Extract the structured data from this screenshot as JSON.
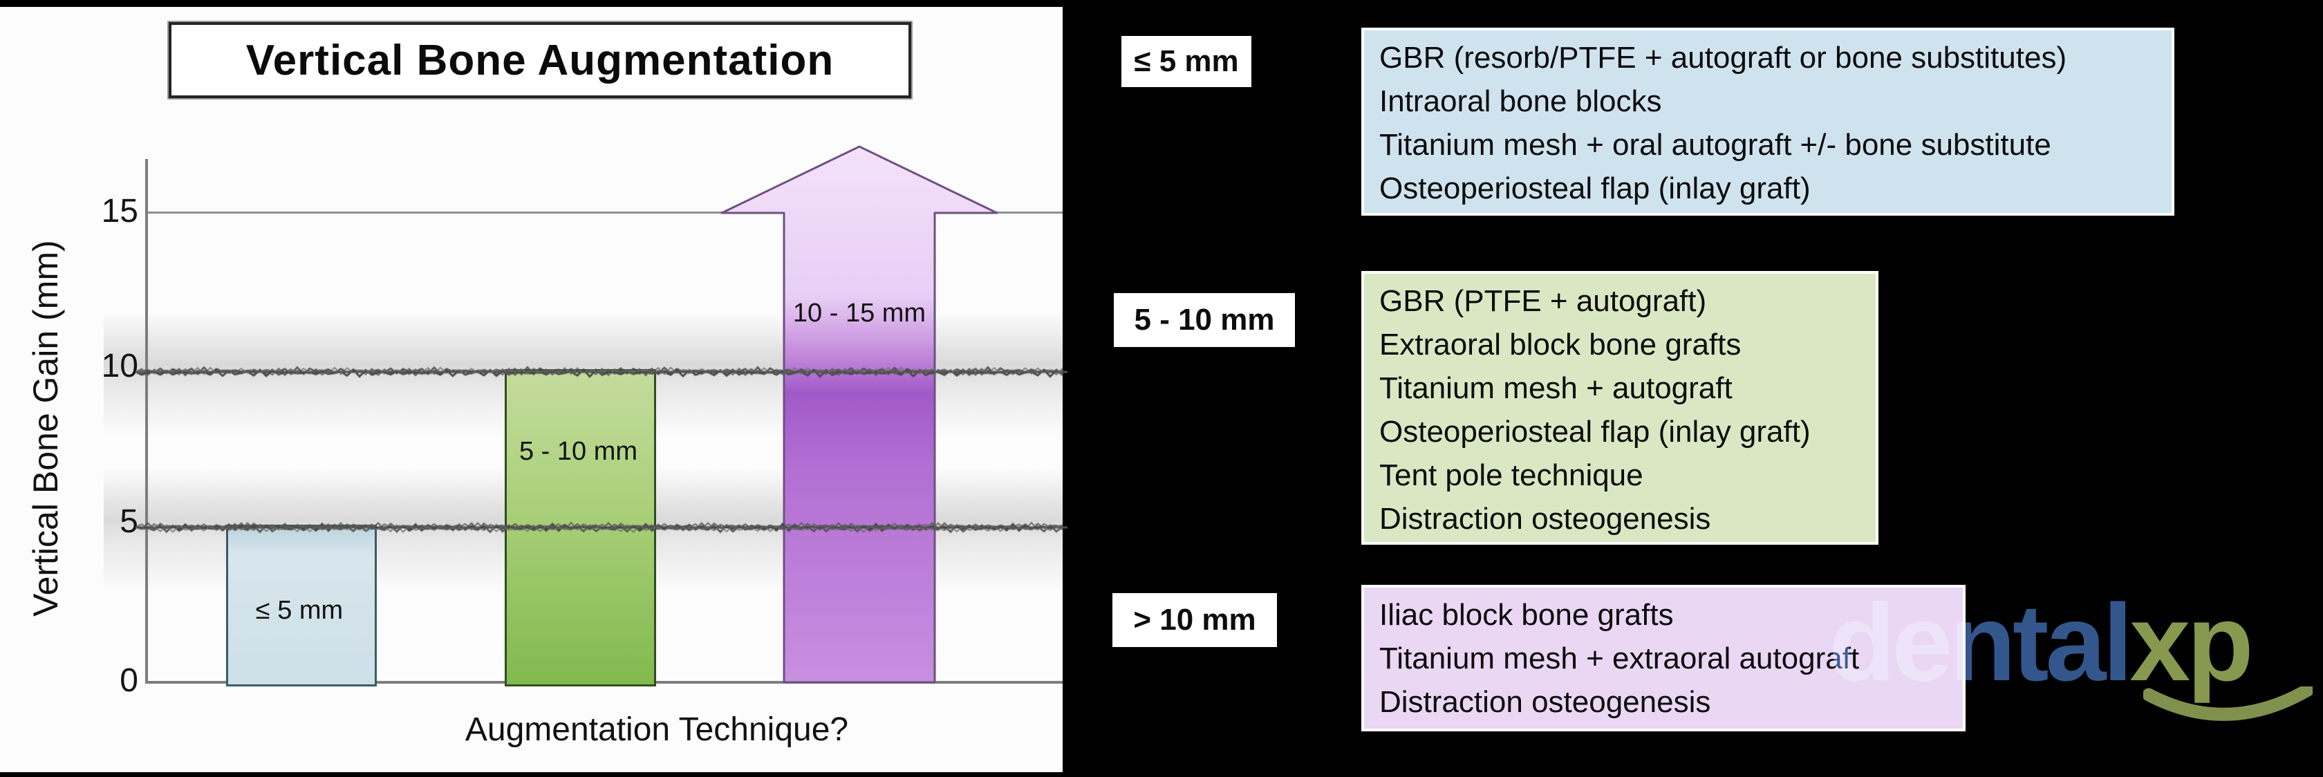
{
  "chart_data": {
    "type": "bar",
    "title": "Vertical Bone Augmentation",
    "xlabel": "Augmentation Technique?",
    "ylabel": "Vertical Bone Gain (mm)",
    "ylim": [
      0,
      17
    ],
    "yticks": [
      0,
      5,
      10,
      15
    ],
    "reference_lines_mm": [
      5,
      10,
      15
    ],
    "grid": "horizontal-reference-lines",
    "bars": [
      {
        "label": "≤ 5 mm",
        "from_mm": 0,
        "to_mm": 5,
        "shape": "rect",
        "color": "#cfe1ea"
      },
      {
        "label": "5 - 10 mm",
        "from_mm": 0,
        "to_mm": 10,
        "shape": "rect",
        "color": "#9ac662"
      },
      {
        "label": "10 - 15 mm",
        "from_mm": 0,
        "to_mm": 17,
        "shape": "arrow-up",
        "color": "#c48ade"
      }
    ]
  },
  "chart": {
    "title": "Vertical Bone Augmentation",
    "y_axis_label": "Vertical Bone Gain (mm)",
    "x_axis_label": "Augmentation Technique?",
    "ticks": {
      "t15": "15",
      "t10": "10",
      "t5": "5",
      "t0": "0"
    },
    "bar_labels": {
      "small": "≤ 5 mm",
      "mid": "5 - 10 mm",
      "large": "10 - 15 mm"
    }
  },
  "legend": {
    "sections": [
      {
        "range": "≤ 5 mm",
        "color": "#cfe3ef",
        "items": [
          "GBR (resorb/PTFE + autograft or bone substitutes)",
          "Intraoral bone blocks",
          "Titanium mesh + oral autograft +/- bone substitute",
          "Osteoperiosteal flap (inlay graft)"
        ]
      },
      {
        "range": "5 - 10 mm",
        "color": "#d9e8c3",
        "items": [
          "GBR (PTFE + autograft)",
          "Extraoral block bone grafts",
          "Titanium mesh + autograft",
          "Osteoperiosteal flap (inlay graft)",
          "Tent pole technique",
          "Distraction osteogenesis"
        ]
      },
      {
        "range": "> 10 mm",
        "color": "#ead7f4",
        "items": [
          "Iliac block bone grafts",
          "Titanium mesh + extraoral autograft",
          "Distraction osteogenesis"
        ]
      }
    ]
  },
  "logo": {
    "dental": "dental",
    "xp": "xp"
  },
  "colors": {
    "background": "#000000",
    "panel": "#fcfcfc",
    "bar_blue": "#cfe1ea",
    "bar_green": "#9ac662",
    "bar_purple": "#c48ade",
    "logo_blue": "#33568c",
    "logo_olive": "#87994f"
  }
}
